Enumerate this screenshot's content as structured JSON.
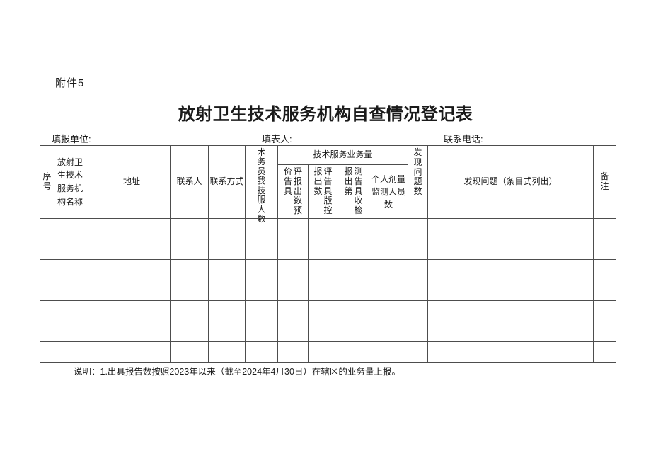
{
  "page": {
    "attachment_label": "附件5",
    "title": "放射卫生技术服务机构自查情况登记表",
    "info": {
      "unit_label": "填报单位:",
      "filler_label": "填表人:",
      "phone_label": "联系电话:"
    },
    "note": "说明：1.出具报告数按照2023年以来（截至2024年4月30日）在辖区的业务量上报。"
  },
  "table": {
    "row_count": 7,
    "column_count": 13,
    "headers": {
      "seq": "序号",
      "org_name": "放射卫生技术服务机构名称",
      "address": "地址",
      "contact": "联系人",
      "contact_method": "联系方式",
      "staff_count_vertical": "术务员我技服人数",
      "service_volume_group": "技术服务业务量",
      "sub_pre_eval_left": "价告具",
      "sub_pre_eval_right": "评报出数预",
      "sub_control_left": "报出数",
      "sub_control_right": "评告具版控",
      "sub_detect_left": "报出第",
      "sub_detect_right": "测告具收检",
      "personal_dose": "个人剂量监测人员数",
      "problems_found_count": "发现问题数",
      "problems_found_detail": "发现问题（条目式列出）",
      "remarks": "备注"
    }
  }
}
